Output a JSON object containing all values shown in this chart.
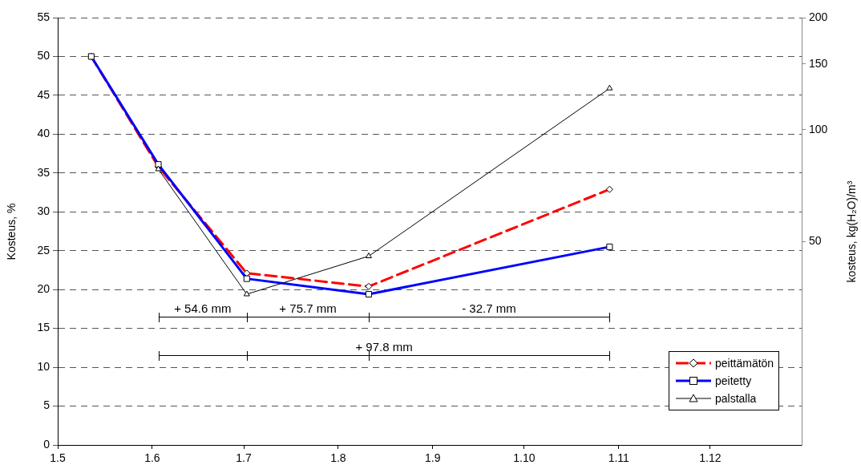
{
  "chart_data": {
    "type": "line",
    "ylabel": "Kosteus, %",
    "y2label": "kosteus, kg(H₂O)/m³",
    "xlim": [
      "--05-01",
      "--12-31"
    ],
    "xticks": [
      {
        "value": "--05-01",
        "label": "1.5"
      },
      {
        "value": "--06-01",
        "label": "1.6"
      },
      {
        "value": "--07-01",
        "label": "1.7"
      },
      {
        "value": "--08-01",
        "label": "1.8"
      },
      {
        "value": "--09-01",
        "label": "1.9"
      },
      {
        "value": "--10-01",
        "label": "1.10"
      },
      {
        "value": "--11-01",
        "label": "1.11"
      },
      {
        "value": "--12-01",
        "label": "1.12"
      }
    ],
    "ylim": [
      0,
      55
    ],
    "yticks": [
      0,
      5,
      10,
      15,
      20,
      25,
      30,
      35,
      40,
      45,
      50,
      55
    ],
    "y2lim": [
      14.2,
      200
    ],
    "y2ticks": [
      50,
      100,
      150,
      200
    ],
    "log": "y2",
    "grid": "y",
    "legend": "bottom right",
    "series": [
      {
        "name": "peittämätön",
        "color": "#ff0000",
        "marker": "diamond",
        "line_style": "dashed",
        "x": [
          "--05-12",
          "--06-03",
          "--07-02",
          "--08-11",
          "--10-29"
        ],
        "values": [
          50,
          35.8,
          22.1,
          20.4,
          32.9
        ]
      },
      {
        "name": "peitetty",
        "color": "#0000ff",
        "marker": "square",
        "line_style": "solid",
        "x": [
          "--05-12",
          "--06-03",
          "--07-02",
          "--08-11",
          "--10-29"
        ],
        "values": [
          50,
          36.1,
          21.4,
          19.4,
          25.5
        ]
      },
      {
        "name": "palstalla",
        "color": "#000000",
        "marker": "triangle",
        "line_style": "solid",
        "x": [
          "--06-03",
          "--07-02",
          "--08-11",
          "--10-29"
        ],
        "values": [
          35.5,
          19.4,
          24.3,
          45.9
        ]
      }
    ],
    "annotations": [
      "+ 54.6 mm",
      "+ 75.7 mm",
      "- 32.7 mm",
      "+ 97.8 mm"
    ]
  }
}
